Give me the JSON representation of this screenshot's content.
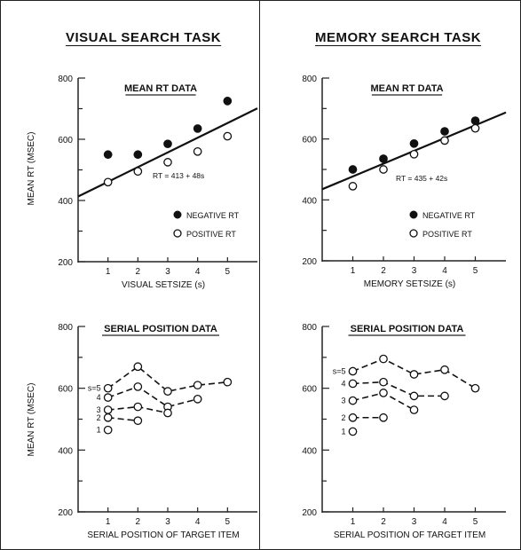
{
  "headings": {
    "left": "VISUAL SEARCH TASK",
    "right": "MEMORY SEARCH TASK"
  },
  "chart_data": [
    {
      "type": "scatter",
      "title": "MEAN RT DATA",
      "xlabel": "VISUAL SETSIZE (s)",
      "ylabel": "MEAN RT (MSEC)",
      "xlim": [
        0,
        6
      ],
      "ylim": [
        200,
        800
      ],
      "xticks": [
        "1",
        "2",
        "3",
        "4",
        "5"
      ],
      "yticks": [
        "200",
        "400",
        "600",
        "800"
      ],
      "series": [
        {
          "name": "NEGATIVE RT",
          "marker": "filled",
          "x": [
            1,
            2,
            3,
            4,
            5
          ],
          "y": [
            550,
            550,
            585,
            635,
            725
          ]
        },
        {
          "name": "POSITIVE RT",
          "marker": "open",
          "x": [
            1,
            2,
            3,
            4,
            5
          ],
          "y": [
            460,
            495,
            525,
            560,
            610
          ]
        }
      ],
      "fit_line": {
        "label": "RT = 413 + 48s",
        "intercept": 413,
        "slope": 48
      }
    },
    {
      "type": "scatter",
      "title": "MEAN RT DATA",
      "xlabel": "MEMORY SETSIZE (s)",
      "ylabel": "",
      "xlim": [
        0,
        6
      ],
      "ylim": [
        200,
        800
      ],
      "xticks": [
        "1",
        "2",
        "3",
        "4",
        "5"
      ],
      "yticks": [
        "200",
        "400",
        "600",
        "800"
      ],
      "series": [
        {
          "name": "NEGATIVE RT",
          "marker": "filled",
          "x": [
            1,
            2,
            3,
            4,
            5
          ],
          "y": [
            500,
            535,
            585,
            625,
            660
          ]
        },
        {
          "name": "POSITIVE RT",
          "marker": "open",
          "x": [
            1,
            2,
            3,
            4,
            5
          ],
          "y": [
            445,
            500,
            550,
            595,
            635
          ]
        }
      ],
      "fit_line": {
        "label": "RT = 435 + 42s",
        "intercept": 435,
        "slope": 42
      }
    },
    {
      "type": "line",
      "title": "SERIAL POSITION DATA",
      "xlabel": "SERIAL POSITION OF TARGET ITEM",
      "ylabel": "MEAN RT (MSEC)",
      "xlim": [
        0,
        6
      ],
      "ylim": [
        200,
        800
      ],
      "xticks": [
        "1",
        "2",
        "3",
        "4",
        "5"
      ],
      "yticks": [
        "200",
        "400",
        "600",
        "800"
      ],
      "series": [
        {
          "name": "s=5",
          "x": [
            1,
            2,
            3,
            4,
            5
          ],
          "y": [
            600,
            670,
            590,
            610,
            620
          ]
        },
        {
          "name": "4",
          "x": [
            1,
            2,
            3,
            4
          ],
          "y": [
            570,
            605,
            540,
            565
          ]
        },
        {
          "name": "3",
          "x": [
            1,
            2,
            3
          ],
          "y": [
            530,
            540,
            520
          ]
        },
        {
          "name": "2",
          "x": [
            1,
            2
          ],
          "y": [
            505,
            495
          ]
        },
        {
          "name": "1",
          "x": [
            1
          ],
          "y": [
            465
          ]
        }
      ]
    },
    {
      "type": "line",
      "title": "SERIAL POSITION DATA",
      "xlabel": "SERIAL POSITION OF TARGET ITEM",
      "ylabel": "",
      "xlim": [
        0,
        6
      ],
      "ylim": [
        200,
        800
      ],
      "xticks": [
        "1",
        "2",
        "3",
        "4",
        "5"
      ],
      "yticks": [
        "200",
        "400",
        "600",
        "800"
      ],
      "series": [
        {
          "name": "s=5",
          "x": [
            1,
            2,
            3,
            4,
            5
          ],
          "y": [
            655,
            695,
            645,
            660,
            600
          ]
        },
        {
          "name": "4",
          "x": [
            1,
            2,
            3,
            4
          ],
          "y": [
            615,
            620,
            575,
            575
          ]
        },
        {
          "name": "3",
          "x": [
            1,
            2,
            3
          ],
          "y": [
            560,
            585,
            530
          ]
        },
        {
          "name": "2",
          "x": [
            1,
            2
          ],
          "y": [
            505,
            505
          ]
        },
        {
          "name": "1",
          "x": [
            1
          ],
          "y": [
            460
          ]
        }
      ]
    }
  ]
}
